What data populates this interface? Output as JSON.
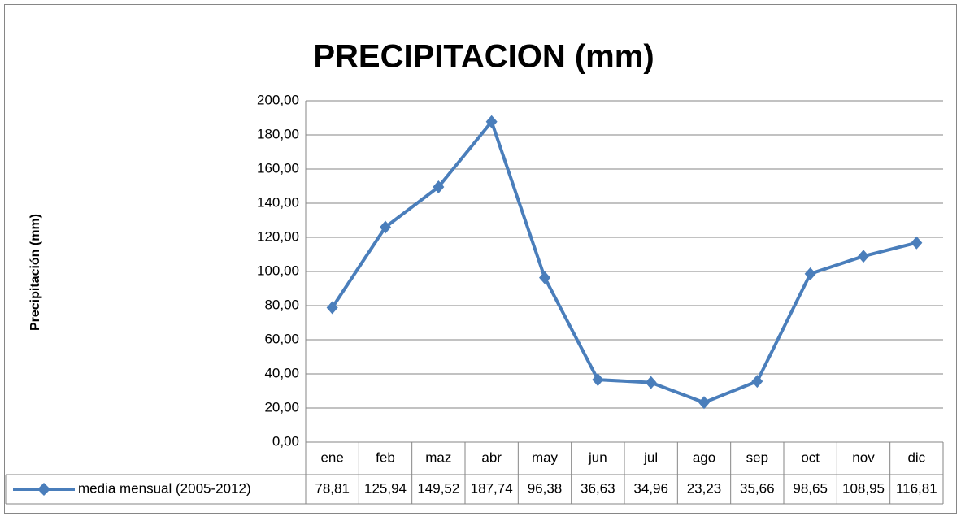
{
  "chart_data": {
    "type": "line",
    "title": "PRECIPITACION (mm)",
    "y_label": "Precipitación (mm)",
    "categories": [
      "ene",
      "feb",
      "maz",
      "abr",
      "may",
      "jun",
      "jul",
      "ago",
      "sep",
      "oct",
      "nov",
      "dic"
    ],
    "series": [
      {
        "name": "media mensual (2005-2012)",
        "color": "#4a7ebb",
        "values": [
          78.81,
          125.94,
          149.52,
          187.74,
          96.38,
          36.63,
          34.96,
          23.23,
          35.66,
          98.65,
          108.95,
          116.81
        ],
        "value_labels": [
          "78,81",
          "125,94",
          "149,52",
          "187,74",
          "96,38",
          "36,63",
          "34,96",
          "23,23",
          "35,66",
          "98,65",
          "108,95",
          "116,81"
        ]
      }
    ],
    "ylim": [
      0,
      200
    ],
    "yticks": [
      {
        "value": 0,
        "label": "0,00"
      },
      {
        "value": 20,
        "label": "20,00"
      },
      {
        "value": 40,
        "label": "40,00"
      },
      {
        "value": 60,
        "label": "60,00"
      },
      {
        "value": 80,
        "label": "80,00"
      },
      {
        "value": 100,
        "label": "100,00"
      },
      {
        "value": 120,
        "label": "120,00"
      },
      {
        "value": 140,
        "label": "140,00"
      },
      {
        "value": 160,
        "label": "160,00"
      },
      {
        "value": 180,
        "label": "180,00"
      },
      {
        "value": 200,
        "label": "200,00"
      }
    ],
    "grid": true
  }
}
